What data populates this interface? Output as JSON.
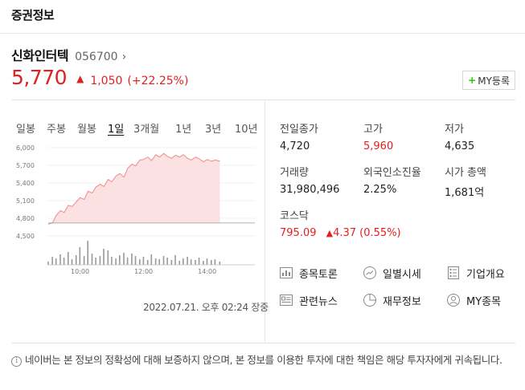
{
  "header": {
    "title": "증권정보"
  },
  "stock": {
    "name": "신화인터텍",
    "code": "056700",
    "price": "5,770",
    "change": "1,050",
    "change_rate": "(+22.25%)"
  },
  "my_button": {
    "plus": "+",
    "label": "MY등록"
  },
  "periods": [
    "일봉",
    "주봉",
    "월봉",
    "1일",
    "3개월",
    "1년",
    "3년",
    "10년"
  ],
  "active_period": "1일",
  "timestamp": "2022.07.21. 오후 02:24 장중",
  "info": {
    "prev_close": {
      "label": "전일종가",
      "value": "4,720"
    },
    "high": {
      "label": "고가",
      "value": "5,960"
    },
    "low": {
      "label": "저가",
      "value": "4,635"
    },
    "volume": {
      "label": "거래량",
      "value": "31,980,496"
    },
    "foreign_ratio": {
      "label": "외국인소진율",
      "value": "2.25%"
    },
    "market_cap": {
      "label": "시가 총액",
      "value": "1,681억"
    },
    "index": {
      "label": "코스닥",
      "value": "795.09",
      "change": "4.37 (0.55%)"
    }
  },
  "links": {
    "discussion": "종목토론",
    "daily": "일별시세",
    "company": "기업개요",
    "news": "관련뉴스",
    "financial": "재무정보",
    "my_stocks": "MY종목"
  },
  "disclaimer": "네이버는 본 정보의 정확성에 대해 보증하지 않으며, 본 정보를 이용한 투자에 대한 책임은 해당 투자자에게 귀속됩니다.",
  "colors": {
    "up": "#e22020",
    "fill": "#fbe1e1",
    "accent": "#1ec800"
  },
  "chart_data": {
    "type": "area",
    "y_ticks": [
      "6,000",
      "5,700",
      "5,400",
      "5,100",
      "4,800",
      "4,500"
    ],
    "x_ticks": [
      "10:00",
      "12:00",
      "14:00"
    ],
    "ylim": [
      4500,
      6000
    ],
    "baseline": 4720,
    "x": [
      "09:00",
      "09:08",
      "09:15",
      "09:23",
      "09:30",
      "09:38",
      "09:45",
      "09:53",
      "10:00",
      "10:08",
      "10:15",
      "10:23",
      "10:30",
      "10:38",
      "10:45",
      "10:53",
      "11:00",
      "11:08",
      "11:15",
      "11:23",
      "11:30",
      "11:38",
      "11:45",
      "11:53",
      "12:00",
      "12:08",
      "12:15",
      "12:23",
      "12:30",
      "12:38",
      "12:45",
      "12:53",
      "13:00",
      "13:08",
      "13:15",
      "13:23",
      "13:30",
      "13:38",
      "13:45",
      "13:53",
      "14:00",
      "14:08",
      "14:15",
      "14:24"
    ],
    "values": [
      4700,
      4720,
      4850,
      4930,
      4900,
      5020,
      5000,
      5080,
      5150,
      5120,
      5260,
      5230,
      5330,
      5380,
      5340,
      5460,
      5420,
      5520,
      5560,
      5500,
      5650,
      5720,
      5690,
      5790,
      5800,
      5840,
      5780,
      5880,
      5840,
      5900,
      5850,
      5820,
      5870,
      5840,
      5880,
      5820,
      5790,
      5840,
      5810,
      5760,
      5800,
      5770,
      5790,
      5770
    ],
    "volume": [
      4,
      10,
      8,
      13,
      9,
      16,
      7,
      12,
      22,
      11,
      30,
      14,
      9,
      11,
      20,
      18,
      10,
      8,
      12,
      15,
      9,
      14,
      11,
      7,
      10,
      6,
      13,
      8,
      7,
      11,
      9,
      6,
      12,
      5,
      8,
      10,
      7,
      6,
      9,
      5,
      8,
      6,
      7,
      4
    ]
  }
}
